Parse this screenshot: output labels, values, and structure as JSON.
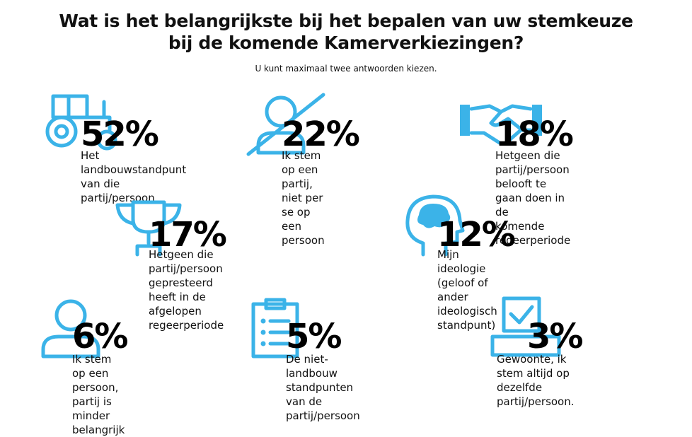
{
  "title_line1": "Wat is het belangrijkste bij het bepalen van uw stemkeuze",
  "title_line2": "bij de komende Kamerverkiezingen?",
  "subtitle": "U kunt maximaal twee antwoorden kiezen.",
  "accent_color": "#3bb3e8",
  "chart_data": {
    "type": "table",
    "title": "Wat is het belangrijkste bij het bepalen van uw stemkeuze bij de komende Kamerverkiezingen?",
    "subtitle": "U kunt maximaal twee antwoorden kiezen.",
    "items": [
      {
        "pct": "52%",
        "value": 52,
        "icon": "tractor-icon",
        "label": "Het landbouwstandpunt\nvan die partij/persoon"
      },
      {
        "pct": "22%",
        "value": 22,
        "icon": "person-crossed-icon",
        "label": "Ik stem op een partij,\nniet per se op een persoon"
      },
      {
        "pct": "18%",
        "value": 18,
        "icon": "handshake-icon",
        "label": "Hetgeen die partij/persoon\nbelooft te gaan doen in de\nkomende regeerperiode"
      },
      {
        "pct": "17%",
        "value": 17,
        "icon": "trophy-icon",
        "label": "Hetgeen die partij/persoon gepresteerd\nheeft in de afgelopen regeerperiode"
      },
      {
        "pct": "12%",
        "value": 12,
        "icon": "head-brain-icon",
        "label": "Mijn ideologie (geloof of\nander ideologisch standpunt)"
      },
      {
        "pct": "6%",
        "value": 6,
        "icon": "person-icon",
        "label": "Ik stem op een persoon,\npartij is minder belangrijk"
      },
      {
        "pct": "5%",
        "value": 5,
        "icon": "clipboard-list-icon",
        "label": "De niet-landbouw standpunten\nvan de partij/persoon"
      },
      {
        "pct": "3%",
        "value": 3,
        "icon": "ballot-box-icon",
        "label": "Gewoonte, ik stem altijd op\ndezelfde partij/persoon."
      }
    ]
  }
}
